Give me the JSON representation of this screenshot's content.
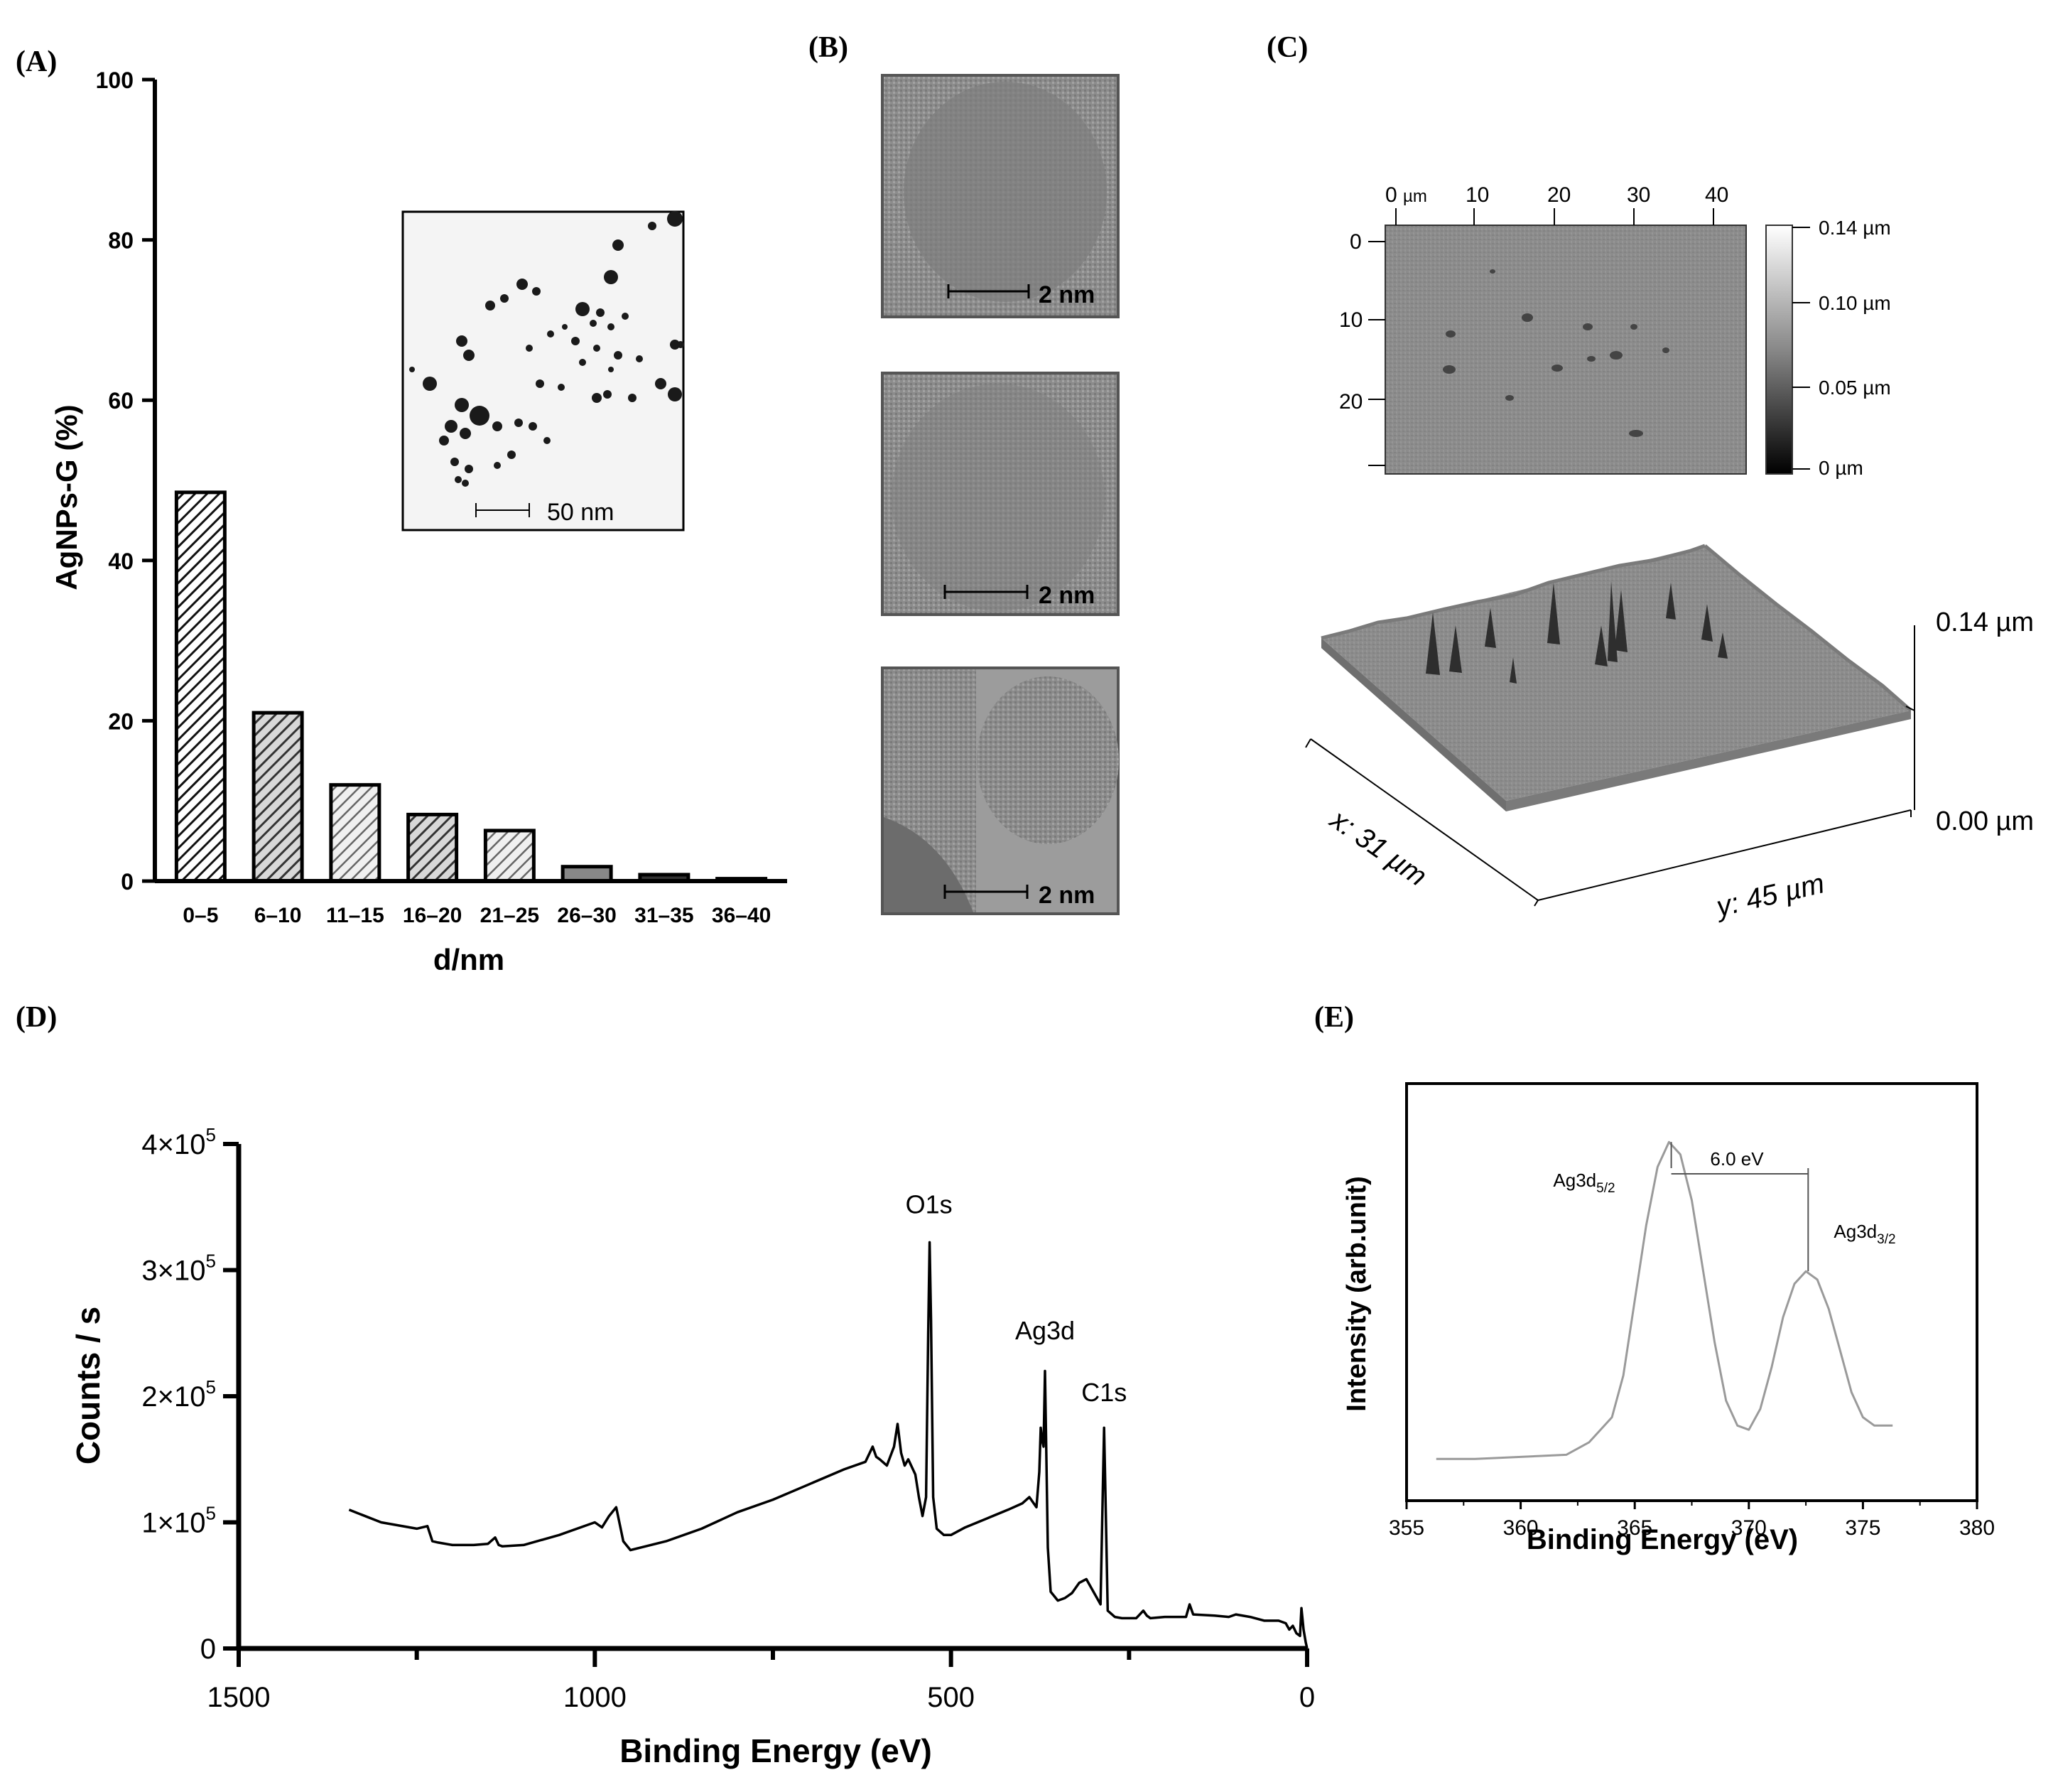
{
  "panels": {
    "A": "(A)",
    "B": "(B)",
    "C": "(C)",
    "D": "(D)",
    "E": "(E)"
  },
  "colors": {
    "axis": "#000000",
    "curve_d": "#000000",
    "curve_e": "#9a9a9a",
    "afm_gray": "#8a8a8a"
  },
  "panel_a": {
    "inset_scalebar": "50 nm"
  },
  "panel_b": {
    "scalebars": [
      "2 nm",
      "2 nm",
      "2 nm"
    ]
  },
  "panel_c": {
    "top_x_ticks": [
      "0",
      "10",
      "20",
      "30",
      "40"
    ],
    "top_x_unit": "µm",
    "top_y_ticks": [
      "0",
      "10",
      "20"
    ],
    "colorbar_ticks": [
      "0.14 µm",
      "0.10 µm",
      "0.05 µm",
      "0 µm"
    ],
    "z_max": "0.14 µm",
    "z_min": "0.00 µm",
    "x_axis": "x: 31 µm",
    "y_axis": "y: 45 µm"
  },
  "panel_e": {
    "peak1_label": "Ag3d",
    "peak1_sub": "5/2",
    "peak2_label": "Ag3d",
    "peak2_sub": "3/2",
    "split_label": "6.0 eV"
  },
  "chart_data": [
    {
      "id": "A",
      "type": "bar",
      "title": "",
      "xlabel": "d/nm",
      "ylabel": "AgNPs-G (%)",
      "ylim": [
        0,
        100
      ],
      "yticks": [
        0,
        20,
        40,
        60,
        80,
        100
      ],
      "categories": [
        "0–5",
        "6–10",
        "11–15",
        "16–20",
        "21–25",
        "26–30",
        "31–35",
        "36–40"
      ],
      "values": [
        48.5,
        21,
        12,
        8.3,
        6.3,
        1.8,
        0.8,
        0.3
      ]
    },
    {
      "id": "D",
      "type": "line",
      "title": "",
      "xlabel": "Binding Energy (eV)",
      "ylabel": "Counts / s",
      "xlim": [
        1500,
        0
      ],
      "ylim": [
        0,
        400000
      ],
      "xticks": [
        1500,
        1000,
        500,
        0
      ],
      "ytick_labels": [
        "0",
        "1×10",
        "2×10",
        "3×10",
        "4×10"
      ],
      "ytick_exp": "5",
      "annotations": [
        {
          "text": "O1s",
          "x": 531,
          "y": 345000
        },
        {
          "text": "Ag3d",
          "x": 368,
          "y": 245000
        },
        {
          "text": "C1s",
          "x": 285,
          "y": 196000
        }
      ],
      "x": [
        1345,
        1300,
        1250,
        1235,
        1228,
        1220,
        1200,
        1170,
        1150,
        1140,
        1135,
        1130,
        1100,
        1050,
        1000,
        990,
        980,
        970,
        960,
        950,
        900,
        850,
        800,
        750,
        700,
        650,
        620,
        610,
        605,
        600,
        590,
        580,
        575,
        570,
        565,
        560,
        550,
        545,
        540,
        535,
        532,
        530,
        528,
        525,
        520,
        510,
        500,
        480,
        450,
        420,
        400,
        390,
        380,
        376,
        374,
        372,
        370,
        368,
        366,
        364,
        360,
        350,
        340,
        330,
        320,
        310,
        300,
        290,
        287,
        285,
        283,
        280,
        270,
        260,
        240,
        230,
        225,
        220,
        200,
        170,
        165,
        160,
        130,
        110,
        100,
        80,
        60,
        40,
        30,
        25,
        20,
        15,
        10,
        8,
        5,
        2,
        0
      ],
      "y": [
        110000,
        100000,
        95000,
        97000,
        85000,
        84000,
        82000,
        82000,
        83000,
        88000,
        82000,
        81000,
        82000,
        90000,
        100000,
        96000,
        105000,
        112000,
        85000,
        78000,
        85000,
        95000,
        108000,
        118000,
        130000,
        142000,
        148000,
        160000,
        152000,
        150000,
        145000,
        160000,
        178000,
        155000,
        145000,
        150000,
        138000,
        120000,
        105000,
        120000,
        250000,
        322000,
        260000,
        120000,
        95000,
        90000,
        90000,
        96000,
        103000,
        110000,
        115000,
        120000,
        112000,
        140000,
        175000,
        165000,
        160000,
        220000,
        150000,
        80000,
        45000,
        38000,
        40000,
        44000,
        52000,
        55000,
        45000,
        35000,
        120000,
        175000,
        120000,
        30000,
        25000,
        24000,
        24000,
        30000,
        26000,
        24000,
        25000,
        25000,
        35000,
        27000,
        26000,
        25000,
        27000,
        25000,
        22000,
        22000,
        20000,
        15000,
        18000,
        12000,
        10000,
        32000,
        15000,
        5000,
        0
      ]
    },
    {
      "id": "E",
      "type": "line",
      "title": "",
      "xlabel": "Binding Energy (eV)",
      "ylabel": "Intensity (arb.unit)",
      "xlim": [
        355,
        380
      ],
      "xticks": [
        355,
        360,
        365,
        370,
        375,
        380
      ],
      "ylim": [
        0,
        100
      ],
      "x": [
        356.3,
        358,
        360,
        362,
        363,
        364,
        364.5,
        365,
        365.5,
        366,
        366.5,
        367,
        367.5,
        368,
        368.5,
        369,
        369.5,
        370,
        370.5,
        371,
        371.5,
        372,
        372.5,
        373,
        373.5,
        374,
        374.5,
        375,
        375.5,
        376.3
      ],
      "y": [
        10,
        10,
        10.5,
        11,
        14,
        20,
        30,
        48,
        66,
        80,
        86,
        83,
        72,
        55,
        38,
        24,
        18,
        17,
        22,
        32,
        44,
        52,
        55,
        53,
        46,
        36,
        26,
        20,
        18,
        18
      ]
    }
  ]
}
